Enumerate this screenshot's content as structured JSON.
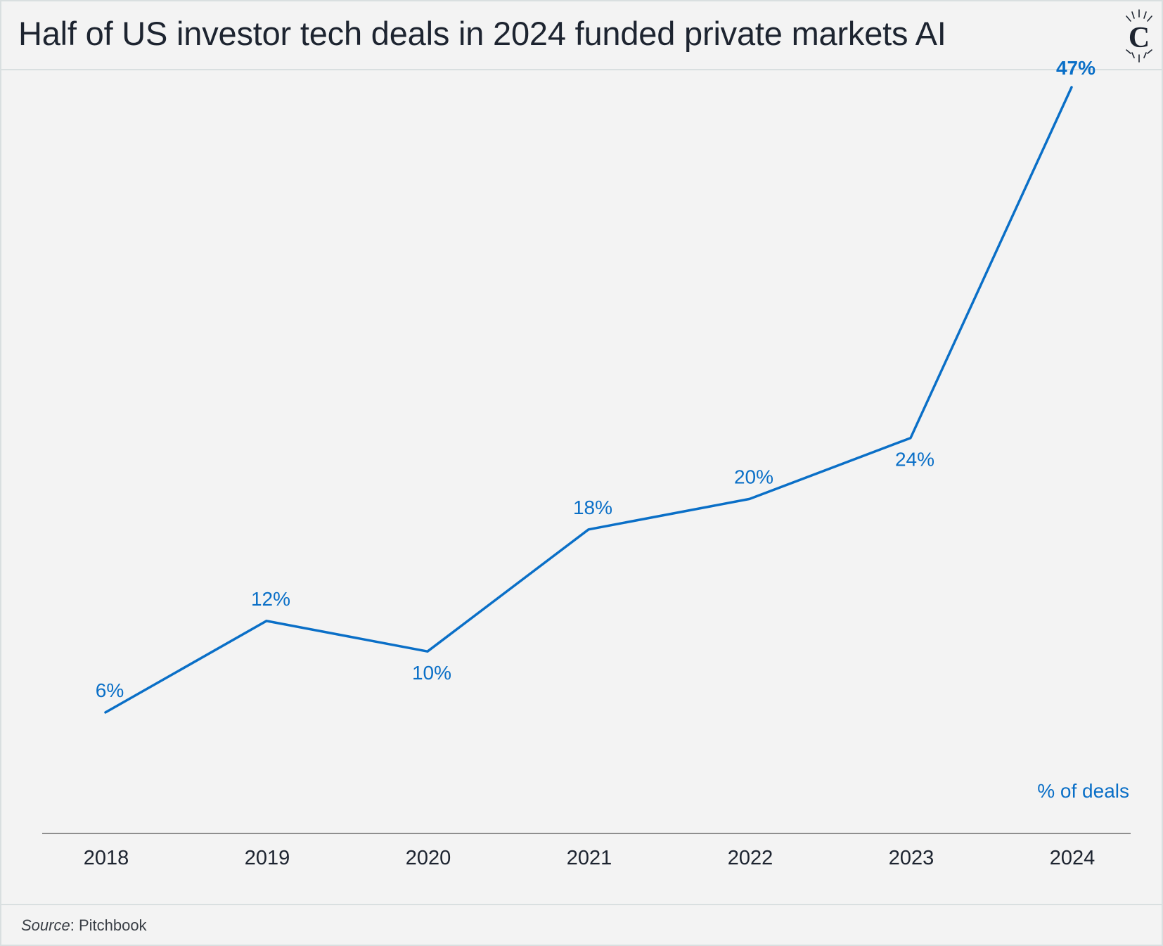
{
  "title": "Half of US investor tech deals in 2024 funded private markets AI",
  "source": {
    "label": "Source",
    "text": ": Pitchbook"
  },
  "logo": {
    "icon": "crown-c-logo-icon",
    "letter": "C"
  },
  "colors": {
    "line": "#0a6fc7",
    "text": "#1d2430",
    "axis": "#6d6d6d",
    "background": "#f3f3f3"
  },
  "chart_data": {
    "type": "line",
    "categories": [
      "2018",
      "2019",
      "2020",
      "2021",
      "2022",
      "2023",
      "2024"
    ],
    "series": [
      {
        "values": [
          6,
          12,
          10,
          18,
          20,
          24,
          47
        ]
      }
    ],
    "data_labels": [
      "6%",
      "12%",
      "10%",
      "18%",
      "20%",
      "24%",
      "47%"
    ],
    "unit_label": "% of deals",
    "title": "Half of US investor tech deals in 2024 funded private markets AI",
    "xlabel": "",
    "ylabel": "",
    "ylim": [
      0,
      50
    ],
    "grid": false,
    "legend": "none"
  }
}
